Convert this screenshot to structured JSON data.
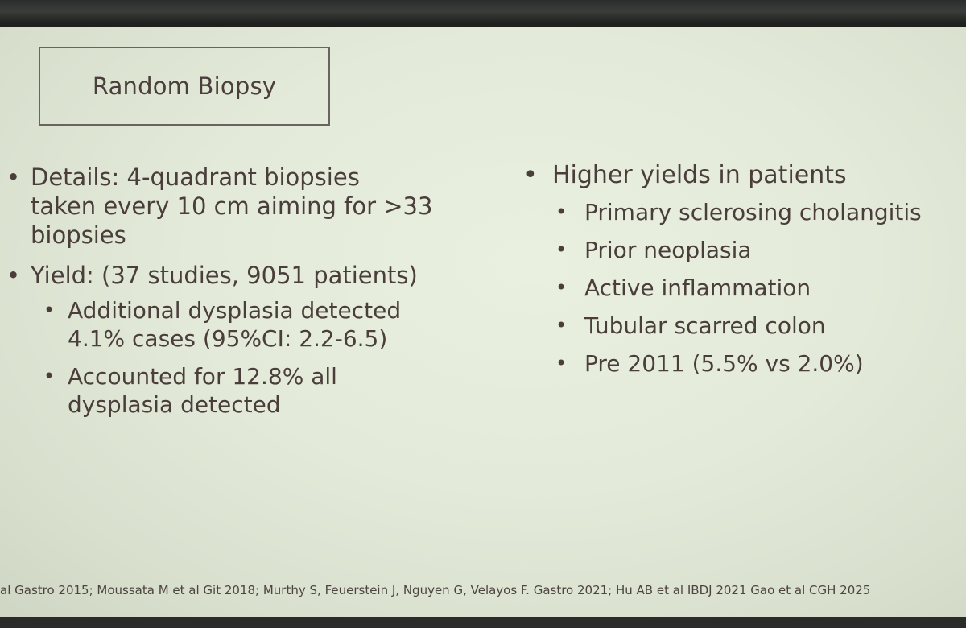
{
  "slide": {
    "title": "Random Biopsy",
    "left_column": {
      "bullets": [
        {
          "lines": [
            "Details: 4-quadrant biopsies",
            "taken every 10 cm aiming for >33",
            "biopsies"
          ],
          "sub": []
        },
        {
          "lines": [
            "Yield: (37 studies, 9051 patients)"
          ],
          "sub": [
            {
              "lines": [
                "Additional dysplasia detected",
                "4.1% cases (95%CI: 2.2-6.5)"
              ]
            },
            {
              "lines": [
                "Accounted for 12.8% all",
                "dysplasia detected"
              ]
            }
          ]
        }
      ]
    },
    "right_column": {
      "heading": "Higher yields in patients",
      "items": [
        "Primary sclerosing cholangitis",
        "Prior neoplasia",
        "Active inflammation",
        "Tubular scarred colon",
        "Pre 2011 (5.5% vs 2.0%)"
      ]
    },
    "references": "al Gastro 2015; Moussata M et al Git 2018; Murthy S, Feuerstein J, Nguyen G, Velayos F. Gastro 2021; Hu AB et al IBDJ 2021 Gao et al CGH 2025"
  },
  "colors": {
    "slide_background": "#e4ead9",
    "text": "#4a3e3b",
    "title_border": "#6b6360"
  }
}
